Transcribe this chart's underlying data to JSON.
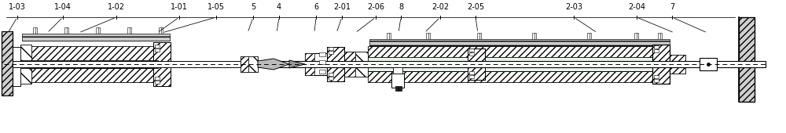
{
  "bg_color": "#ffffff",
  "line_color": "#000000",
  "figsize": [
    10.0,
    1.7
  ],
  "dpi": 100,
  "labels_top": [
    [
      "1-03",
      22
    ],
    [
      "1-04",
      80
    ],
    [
      "1-02",
      148
    ],
    [
      "1-01",
      228
    ],
    [
      "1-05",
      275
    ],
    [
      "5",
      322
    ],
    [
      "4",
      355
    ],
    [
      "6",
      402
    ],
    [
      "2-01",
      435
    ],
    [
      "2-06",
      478
    ],
    [
      "8",
      510
    ],
    [
      "2-02",
      560
    ],
    [
      "2-05",
      605
    ],
    [
      "2-03",
      730
    ],
    [
      "2-04",
      810
    ],
    [
      "7",
      855
    ]
  ]
}
